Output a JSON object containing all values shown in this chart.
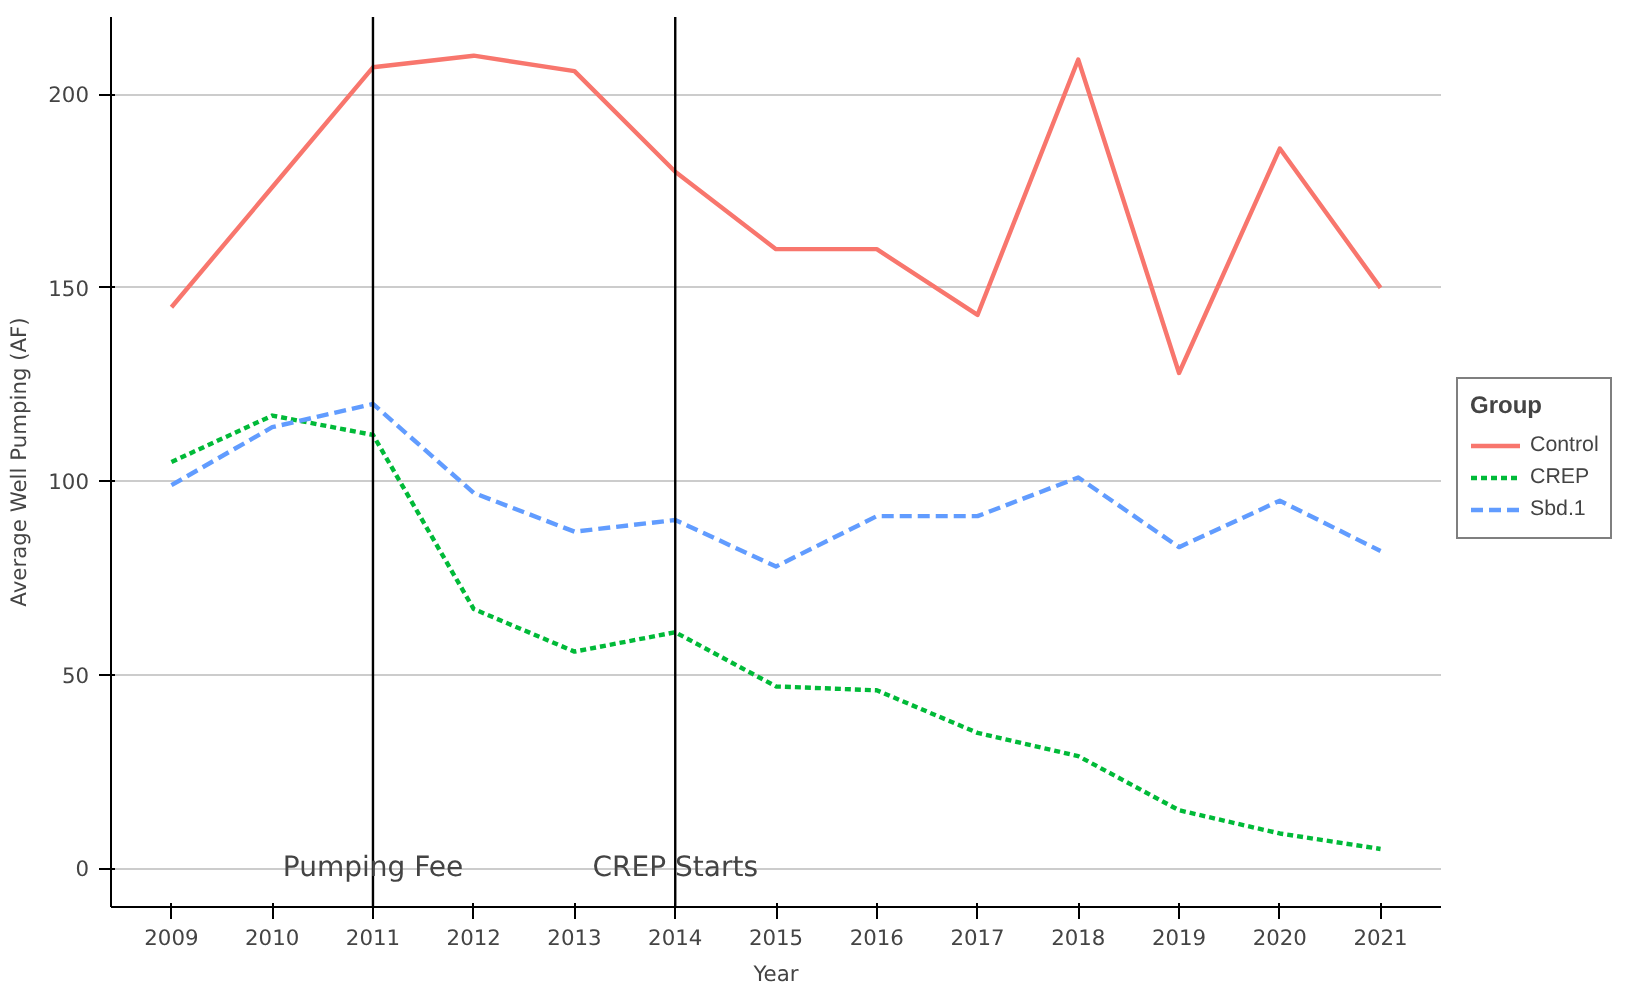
{
  "chart_data": {
    "type": "line",
    "xlabel": "Year",
    "ylabel": "Average Well Pumping (AF)",
    "legend_title": "Group",
    "x": [
      2009,
      2010,
      2011,
      2012,
      2013,
      2014,
      2015,
      2016,
      2017,
      2018,
      2019,
      2020,
      2021
    ],
    "series": [
      {
        "name": "Control",
        "color": "#f8766d",
        "line_style": "solid",
        "values": [
          145,
          176,
          207,
          210,
          206,
          180,
          160,
          160,
          143,
          209,
          128,
          186,
          150
        ]
      },
      {
        "name": "CREP",
        "color": "#00ba38",
        "line_style": "dotted",
        "values": [
          105,
          117,
          112,
          67,
          56,
          61,
          47,
          46,
          35,
          29,
          15,
          9,
          5
        ]
      },
      {
        "name": "Sbd.1",
        "color": "#619cff",
        "line_style": "dashed",
        "values": [
          99,
          114,
          120,
          97,
          87,
          90,
          78,
          91,
          91,
          101,
          83,
          95,
          82
        ]
      }
    ],
    "xlim": [
      2008.4,
      2021.6
    ],
    "ylim": [
      -10,
      220
    ],
    "xticks": [
      2009,
      2010,
      2011,
      2012,
      2013,
      2014,
      2015,
      2016,
      2017,
      2018,
      2019,
      2020,
      2021
    ],
    "yticks": [
      0,
      50,
      100,
      150,
      200
    ],
    "ref_lines": [
      {
        "axis": "x",
        "value": 2011,
        "label": "Pumping Fee",
        "color": "#000000"
      },
      {
        "axis": "x",
        "value": 2014,
        "label": "CREP Starts",
        "color": "#000000"
      }
    ],
    "grid": "y",
    "legend": "right",
    "marker": "none"
  }
}
